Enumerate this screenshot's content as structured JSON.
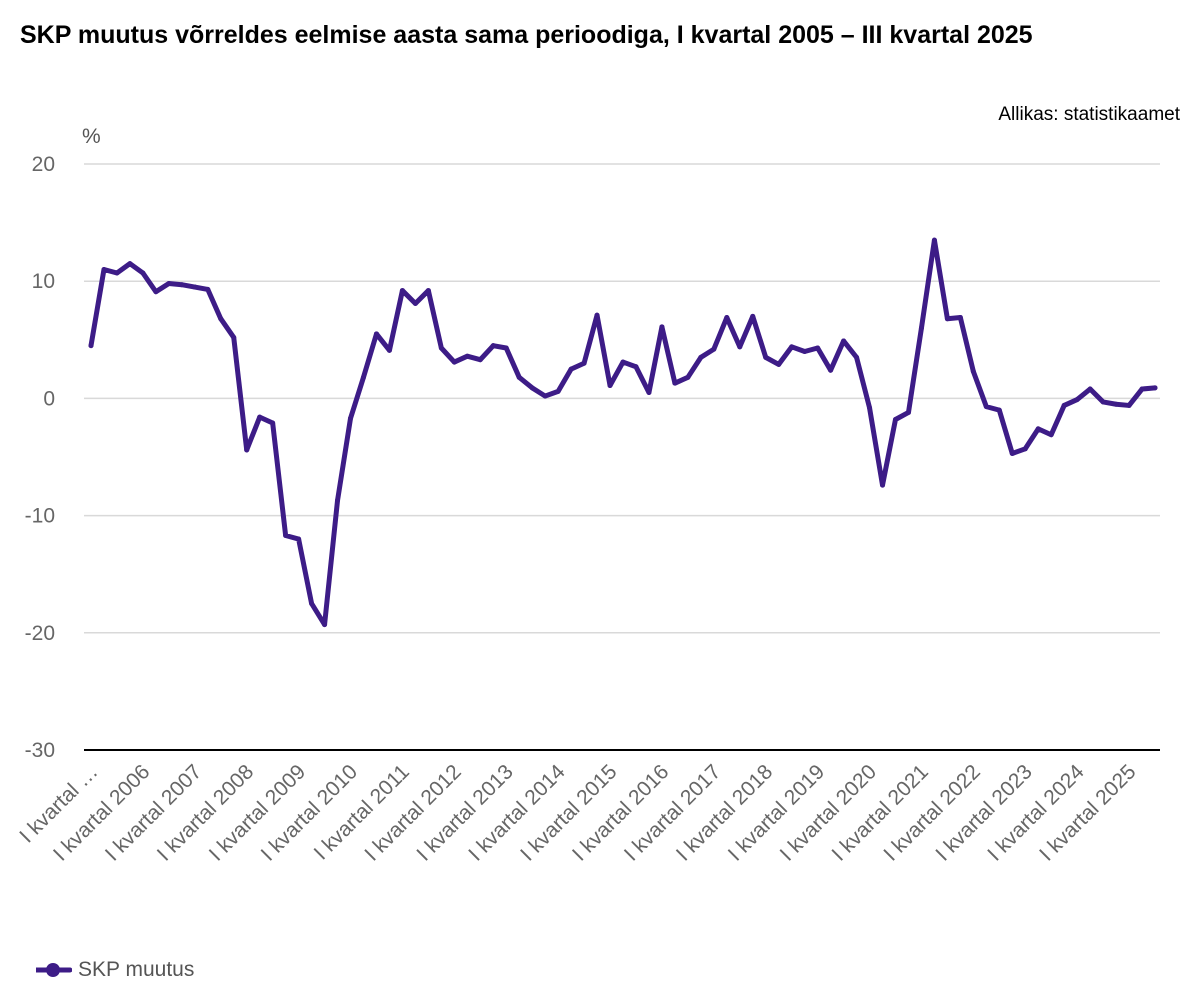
{
  "chart_data": {
    "type": "line",
    "title": "SKP muutus võrreldes eelmise aasta sama perioodiga, I kvartal 2005 – III kvartal 2025",
    "source": "Allikas: statistikaamet",
    "ylabel": "%",
    "ylim": [
      -30,
      20
    ],
    "yticks": [
      20,
      10,
      0,
      -10,
      -20,
      -30
    ],
    "grid": true,
    "legend_position": "bottom-left",
    "xtick_labels": [
      "I kvartal …",
      "I kvartal 2006",
      "I kvartal 2007",
      "I kvartal 2008",
      "I kvartal 2009",
      "I kvartal 2010",
      "I kvartal 2011",
      "I kvartal 2012",
      "I kvartal 2013",
      "I kvartal 2014",
      "I kvartal 2015",
      "I kvartal 2016",
      "I kvartal 2017",
      "I kvartal 2018",
      "I kvartal 2019",
      "I kvartal 2020",
      "I kvartal 2021",
      "I kvartal 2022",
      "I kvartal 2023",
      "I kvartal 2024",
      "I kvartal 2025"
    ],
    "series": [
      {
        "name": "SKP muutus",
        "color": "#3d1c87",
        "values": [
          4.5,
          11.0,
          10.7,
          11.5,
          10.7,
          9.1,
          9.8,
          9.7,
          9.5,
          9.3,
          6.8,
          5.2,
          -4.4,
          -1.6,
          -2.1,
          -11.7,
          -12.0,
          -17.5,
          -19.3,
          -8.7,
          -1.7,
          1.8,
          5.5,
          4.1,
          9.2,
          8.1,
          9.2,
          4.3,
          3.1,
          3.6,
          3.3,
          4.5,
          4.3,
          1.8,
          0.9,
          0.2,
          0.6,
          2.5,
          3.0,
          7.1,
          1.1,
          3.1,
          2.7,
          0.5,
          6.1,
          1.3,
          1.8,
          3.5,
          4.2,
          6.9,
          4.4,
          7.0,
          3.5,
          2.9,
          4.4,
          4.0,
          4.3,
          2.4,
          4.9,
          3.5,
          -0.8,
          -7.4,
          -1.8,
          -1.2,
          6.0,
          13.5,
          6.8,
          6.9,
          2.3,
          -0.7,
          -1.0,
          -4.7,
          -4.3,
          -2.6,
          -3.1,
          -0.6,
          -0.1,
          0.8,
          -0.3,
          -0.5,
          -0.6,
          0.8,
          0.9
        ]
      }
    ]
  }
}
